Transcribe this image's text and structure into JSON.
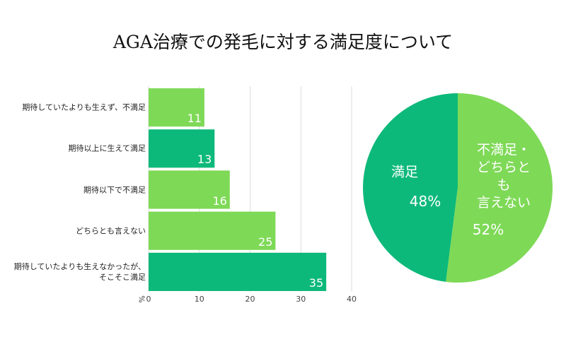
{
  "title": "AGA治療での発毛に対する満足度について",
  "chart_data": [
    {
      "type": "barh",
      "categories": [
        "期待していたよりも生えず、不満足",
        "期待以上に生えて満足",
        "期待以下で不満足",
        "どちらとも言えない",
        "期待していたよりも生えなかったが、\nそこそこ満足"
      ],
      "values": [
        11,
        13,
        16,
        25,
        35
      ],
      "colors": [
        "#7ed957",
        "#0db97a",
        "#7ed957",
        "#7ed957",
        "#0db97a"
      ],
      "xlabel": "%",
      "xlim": [
        0,
        40
      ],
      "xticks": [
        0,
        10,
        20,
        30,
        40
      ],
      "grid": true
    },
    {
      "type": "pie",
      "categories": [
        "満足",
        "不満足・\nどちらとも\n言えない"
      ],
      "values": [
        48,
        52
      ],
      "value_labels": [
        "48%",
        "52%"
      ],
      "colors": [
        "#0db97a",
        "#7ed957"
      ],
      "direction": "counterclockwise"
    }
  ]
}
